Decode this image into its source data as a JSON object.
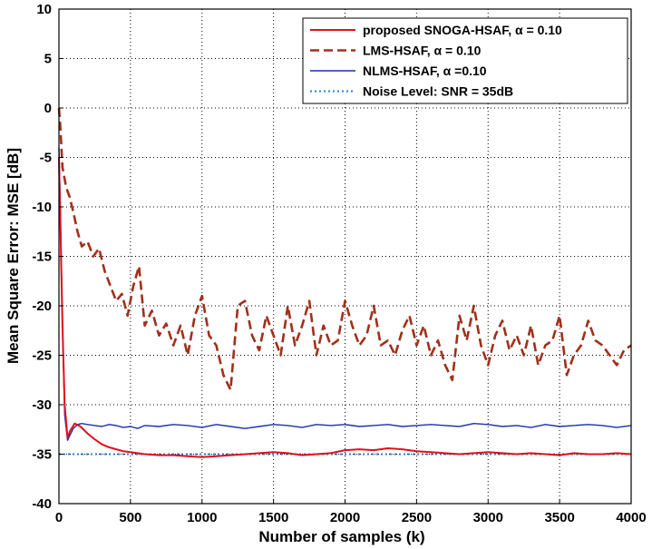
{
  "chart_data": {
    "type": "line",
    "title": "",
    "xlabel": "Number of samples (k)",
    "ylabel": "Mean Square Error: MSE [dB]",
    "xlim": [
      0,
      4000
    ],
    "ylim": [
      -40,
      10
    ],
    "x_ticks": [
      0,
      500,
      1000,
      1500,
      2000,
      2500,
      3000,
      3500,
      4000
    ],
    "y_ticks": [
      10,
      5,
      0,
      -5,
      -10,
      -15,
      -20,
      -25,
      -30,
      -35,
      -40
    ],
    "grid": true,
    "legend_position": "top-right",
    "series": [
      {
        "name": "proposed SNOGA-HSAF, α = 0.10",
        "color": "#e0101c",
        "style": "solid",
        "x": [
          0,
          10,
          25,
          40,
          60,
          80,
          110,
          150,
          200,
          250,
          300,
          350,
          400,
          450,
          500,
          550,
          600,
          700,
          800,
          900,
          1000,
          1100,
          1200,
          1300,
          1400,
          1500,
          1600,
          1700,
          1800,
          1900,
          2000,
          2100,
          2200,
          2300,
          2400,
          2500,
          2600,
          2700,
          2800,
          2900,
          3000,
          3100,
          3200,
          3300,
          3400,
          3500,
          3600,
          3700,
          3800,
          3900,
          4000
        ],
        "y": [
          -5,
          -12,
          -22,
          -30,
          -33.3,
          -32.6,
          -31.9,
          -32.2,
          -32.9,
          -33.5,
          -34.0,
          -34.3,
          -34.5,
          -34.7,
          -34.8,
          -34.9,
          -35.0,
          -35.1,
          -35.1,
          -35.2,
          -35.3,
          -35.2,
          -35.1,
          -35.0,
          -34.9,
          -34.8,
          -34.9,
          -35.1,
          -35.0,
          -34.9,
          -34.6,
          -34.5,
          -34.6,
          -34.4,
          -34.5,
          -34.7,
          -34.8,
          -34.9,
          -35.0,
          -34.9,
          -34.8,
          -34.9,
          -35.0,
          -34.9,
          -35.0,
          -35.1,
          -34.9,
          -35.0,
          -35.0,
          -34.9,
          -35.0
        ]
      },
      {
        "name": "LMS-HSAF, α = 0.10",
        "color": "#a0301a",
        "style": "dashed",
        "x": [
          0,
          10,
          25,
          50,
          75,
          100,
          130,
          160,
          200,
          240,
          280,
          320,
          360,
          400,
          440,
          480,
          520,
          560,
          600,
          650,
          700,
          750,
          800,
          850,
          900,
          950,
          1000,
          1050,
          1100,
          1150,
          1200,
          1250,
          1300,
          1350,
          1400,
          1450,
          1500,
          1550,
          1600,
          1650,
          1700,
          1750,
          1800,
          1850,
          1900,
          1950,
          2000,
          2050,
          2100,
          2150,
          2200,
          2250,
          2300,
          2350,
          2400,
          2450,
          2500,
          2550,
          2600,
          2650,
          2700,
          2750,
          2800,
          2850,
          2900,
          2950,
          3000,
          3050,
          3100,
          3150,
          3200,
          3250,
          3300,
          3350,
          3400,
          3450,
          3500,
          3550,
          3600,
          3650,
          3700,
          3750,
          3800,
          3850,
          3900,
          3950,
          4000
        ],
        "y": [
          0,
          -2,
          -6,
          -8,
          -9,
          -10.5,
          -12.5,
          -14,
          -13.5,
          -15,
          -14.2,
          -16.5,
          -18,
          -19.5,
          -18.8,
          -21,
          -18,
          -16,
          -22,
          -20.5,
          -23,
          -21.8,
          -24,
          -22,
          -25,
          -21,
          -19,
          -23,
          -24,
          -27,
          -28.5,
          -20,
          -19.5,
          -23,
          -24.5,
          -21,
          -23,
          -25,
          -20,
          -24,
          -22,
          -19.5,
          -25,
          -22,
          -24,
          -23.5,
          -19.5,
          -22,
          -24,
          -23,
          -20,
          -24,
          -23.5,
          -25,
          -22.5,
          -21,
          -24,
          -22,
          -25,
          -23.5,
          -26,
          -27.5,
          -21,
          -23.5,
          -20,
          -24,
          -26,
          -23,
          -21.5,
          -24.5,
          -23,
          -25,
          -22,
          -26,
          -24,
          -23.5,
          -21,
          -27,
          -25,
          -24,
          -21.5,
          -23.5,
          -24,
          -25,
          -26,
          -24.5,
          -24
        ]
      },
      {
        "name": "NLMS-HSAF, α =0.10",
        "color": "#1c2fae",
        "style": "solid",
        "x": [
          0,
          10,
          25,
          40,
          60,
          80,
          100,
          130,
          160,
          200,
          250,
          300,
          350,
          400,
          450,
          500,
          550,
          600,
          700,
          800,
          900,
          1000,
          1100,
          1200,
          1300,
          1400,
          1500,
          1600,
          1700,
          1800,
          1900,
          2000,
          2100,
          2200,
          2300,
          2400,
          2500,
          2600,
          2700,
          2800,
          2900,
          3000,
          3100,
          3200,
          3300,
          3400,
          3500,
          3600,
          3700,
          3800,
          3900,
          4000
        ],
        "y": [
          -4,
          -10,
          -22,
          -31,
          -33.6,
          -33.0,
          -32.4,
          -32.0,
          -31.9,
          -32.0,
          -32.1,
          -32.2,
          -32.0,
          -32.1,
          -32.3,
          -32.2,
          -32.4,
          -32.1,
          -32.2,
          -32.0,
          -32.1,
          -32.3,
          -32.0,
          -32.2,
          -32.4,
          -32.2,
          -32.0,
          -32.1,
          -32.3,
          -32.0,
          -32.1,
          -32.0,
          -32.2,
          -32.1,
          -32.0,
          -32.2,
          -32.1,
          -32.0,
          -32.1,
          -32.2,
          -31.9,
          -32.0,
          -32.2,
          -32.1,
          -32.3,
          -32.0,
          -32.2,
          -32.1,
          -32.0,
          -32.1,
          -32.3,
          -32.1
        ]
      },
      {
        "name": "Noise Level: SNR = 35dB",
        "color": "#2a7fd0",
        "style": "dotted",
        "x": [
          0,
          4000
        ],
        "y": [
          -35,
          -35
        ]
      }
    ]
  }
}
